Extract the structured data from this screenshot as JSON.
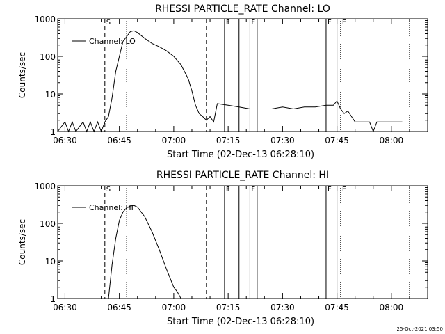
{
  "timestamp": "25-Oct-2021 03:50",
  "colors": {
    "background": "#ffffff",
    "foreground": "#000000"
  },
  "chart_data": [
    {
      "type": "line",
      "title": "RHESSI PARTICLE_RATE Channel: LO",
      "xlabel": "Start Time (02-Dec-13 06:28:10)",
      "ylabel": "Counts/sec",
      "y_scale": "log",
      "xlim": [
        "06:28",
        "08:10"
      ],
      "ylim": [
        1,
        1000
      ],
      "x_ticks": [
        "06:30",
        "06:45",
        "07:00",
        "07:15",
        "07:30",
        "07:45",
        "08:00"
      ],
      "y_ticks": [
        "1",
        "10",
        "100",
        "1000"
      ],
      "legend": {
        "entries": [
          "Channel: LO"
        ],
        "placement": "top-left"
      },
      "grid": false,
      "series": [
        {
          "name": "Channel: LO",
          "x": [
            "06:28",
            "06:30",
            "06:31",
            "06:32",
            "06:33",
            "06:35",
            "06:36",
            "06:37",
            "06:38",
            "06:39",
            "06:40",
            "06:41",
            "06:42",
            "06:43",
            "06:44",
            "06:46",
            "06:48",
            "06:49",
            "06:50",
            "06:52",
            "06:54",
            "06:56",
            "06:58",
            "07:00",
            "07:02",
            "07:04",
            "07:05",
            "07:06",
            "07:07",
            "07:08",
            "07:09",
            "07:10",
            "07:11",
            "07:12",
            "07:15",
            "07:18",
            "07:21",
            "07:24",
            "07:27",
            "07:30",
            "07:33",
            "07:36",
            "07:39",
            "07:42",
            "07:44",
            "07:45",
            "07:46",
            "07:47",
            "07:48",
            "07:50",
            "07:52",
            "07:53",
            "07:54",
            "07:55",
            "07:56",
            "07:58",
            "08:00",
            "08:02",
            "08:03"
          ],
          "values": [
            1,
            1.8,
            1,
            1.8,
            1,
            1.8,
            1,
            1.8,
            1,
            1.8,
            1,
            1.8,
            2.5,
            8,
            40,
            250,
            450,
            480,
            430,
            300,
            220,
            180,
            140,
            100,
            60,
            25,
            12,
            5,
            3,
            2.5,
            2,
            2.5,
            1.8,
            5.5,
            5,
            4.5,
            4,
            4,
            4,
            4.5,
            4,
            4.5,
            4.5,
            5,
            5,
            6.5,
            4,
            3,
            3.5,
            1.8,
            1.8,
            1.8,
            1.8,
            1,
            1.8,
            1.8,
            1.8,
            1.8,
            1.8
          ]
        }
      ],
      "annotations": {
        "flags": [
          {
            "label": "S",
            "time": "06:41"
          },
          {
            "label": "F",
            "time": "07:14"
          },
          {
            "label": "F",
            "time": "07:21"
          },
          {
            "label": "F",
            "time": "07:42"
          },
          {
            "label": "E",
            "time": "07:46"
          }
        ],
        "dashed_lines": [
          "06:41",
          "07:09"
        ],
        "dotted_lines": [
          "06:47",
          "07:46",
          "08:05"
        ],
        "solid_lines": [
          "07:14",
          "07:18",
          "07:21",
          "07:23",
          "07:42",
          "07:45"
        ]
      }
    },
    {
      "type": "line",
      "title": "RHESSI PARTICLE_RATE Channel: HI",
      "xlabel": "Start Time (02-Dec-13 06:28:10)",
      "ylabel": "Counts/sec",
      "y_scale": "log",
      "xlim": [
        "06:28",
        "08:10"
      ],
      "ylim": [
        1,
        1000
      ],
      "x_ticks": [
        "06:30",
        "06:45",
        "07:00",
        "07:15",
        "07:30",
        "07:45",
        "08:00"
      ],
      "y_ticks": [
        "1",
        "10",
        "100",
        "1000"
      ],
      "legend": {
        "entries": [
          "Channel: HI"
        ],
        "placement": "top-left"
      },
      "grid": false,
      "series": [
        {
          "name": "Channel: HI",
          "x": [
            "06:42",
            "06:43",
            "06:44",
            "06:45",
            "06:46",
            "06:47",
            "06:48",
            "06:49",
            "06:50",
            "06:52",
            "06:54",
            "06:56",
            "06:58",
            "07:00",
            "07:01",
            "07:02"
          ],
          "values": [
            1,
            8,
            40,
            120,
            200,
            260,
            290,
            300,
            270,
            150,
            60,
            20,
            6,
            2,
            1.5,
            1
          ]
        }
      ],
      "annotations": {
        "flags": [
          {
            "label": "S",
            "time": "06:41"
          },
          {
            "label": "F",
            "time": "07:14"
          },
          {
            "label": "F",
            "time": "07:21"
          },
          {
            "label": "F",
            "time": "07:42"
          },
          {
            "label": "E",
            "time": "07:46"
          }
        ],
        "dashed_lines": [
          "06:41",
          "07:09"
        ],
        "dotted_lines": [
          "06:47",
          "07:46",
          "08:05"
        ],
        "solid_lines": [
          "07:14",
          "07:18",
          "07:21",
          "07:23",
          "07:42",
          "07:45"
        ]
      }
    }
  ]
}
